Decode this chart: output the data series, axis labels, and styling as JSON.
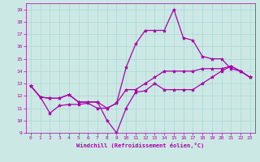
{
  "title": "",
  "xlabel": "Windchill (Refroidissement éolien,°C)",
  "ylabel": "",
  "bg_color": "#cce8e4",
  "line_color": "#aa00aa",
  "grid_color": "#aad8d4",
  "xlim": [
    -0.5,
    23.5
  ],
  "ylim": [
    9,
    19.5
  ],
  "xticks": [
    0,
    1,
    2,
    3,
    4,
    5,
    6,
    7,
    8,
    9,
    10,
    11,
    12,
    13,
    14,
    15,
    16,
    17,
    18,
    19,
    20,
    21,
    22,
    23
  ],
  "yticks": [
    9,
    10,
    11,
    12,
    13,
    14,
    15,
    16,
    17,
    18,
    19
  ],
  "series": [
    [
      12.8,
      11.9,
      11.8,
      11.8,
      12.1,
      11.5,
      11.5,
      11.5,
      10.0,
      9.0,
      11.0,
      12.3,
      12.4,
      13.0,
      12.5,
      12.5,
      12.5,
      12.5,
      13.0,
      13.5,
      14.0,
      14.4,
      14.0,
      13.5
    ],
    [
      12.8,
      11.9,
      10.6,
      11.2,
      11.3,
      11.3,
      11.4,
      11.0,
      11.0,
      11.4,
      12.5,
      12.5,
      13.0,
      13.5,
      14.0,
      14.0,
      14.0,
      14.0,
      14.2,
      14.2,
      14.2,
      14.4,
      14.0,
      13.5
    ],
    [
      12.8,
      11.9,
      11.8,
      11.8,
      12.1,
      11.5,
      11.5,
      11.5,
      11.0,
      11.4,
      14.3,
      16.2,
      17.3,
      17.3,
      17.3,
      19.0,
      16.7,
      16.5,
      15.2,
      15.0,
      15.0,
      14.2,
      14.0,
      13.5
    ]
  ],
  "marker": "*",
  "markersize": 3,
  "linewidth": 0.9,
  "tick_labelsize": 4.5,
  "xlabel_fontsize": 5.0
}
